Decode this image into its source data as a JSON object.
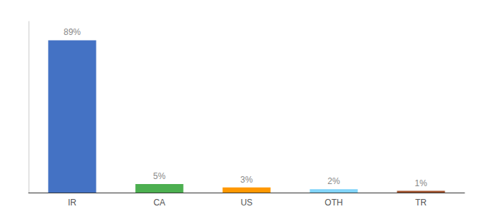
{
  "chart_data": {
    "type": "bar",
    "categories": [
      "IR",
      "CA",
      "US",
      "OTH",
      "TR"
    ],
    "values": [
      89,
      5,
      3,
      2,
      1
    ],
    "value_labels": [
      "89%",
      "5%",
      "3%",
      "2%",
      "1%"
    ],
    "colors": [
      "#4472C4",
      "#4CAF50",
      "#FF9800",
      "#81D4FA",
      "#A0522D"
    ],
    "ylim": [
      0,
      100
    ],
    "grid": false,
    "data_labels": true,
    "tick_labels": "x"
  }
}
